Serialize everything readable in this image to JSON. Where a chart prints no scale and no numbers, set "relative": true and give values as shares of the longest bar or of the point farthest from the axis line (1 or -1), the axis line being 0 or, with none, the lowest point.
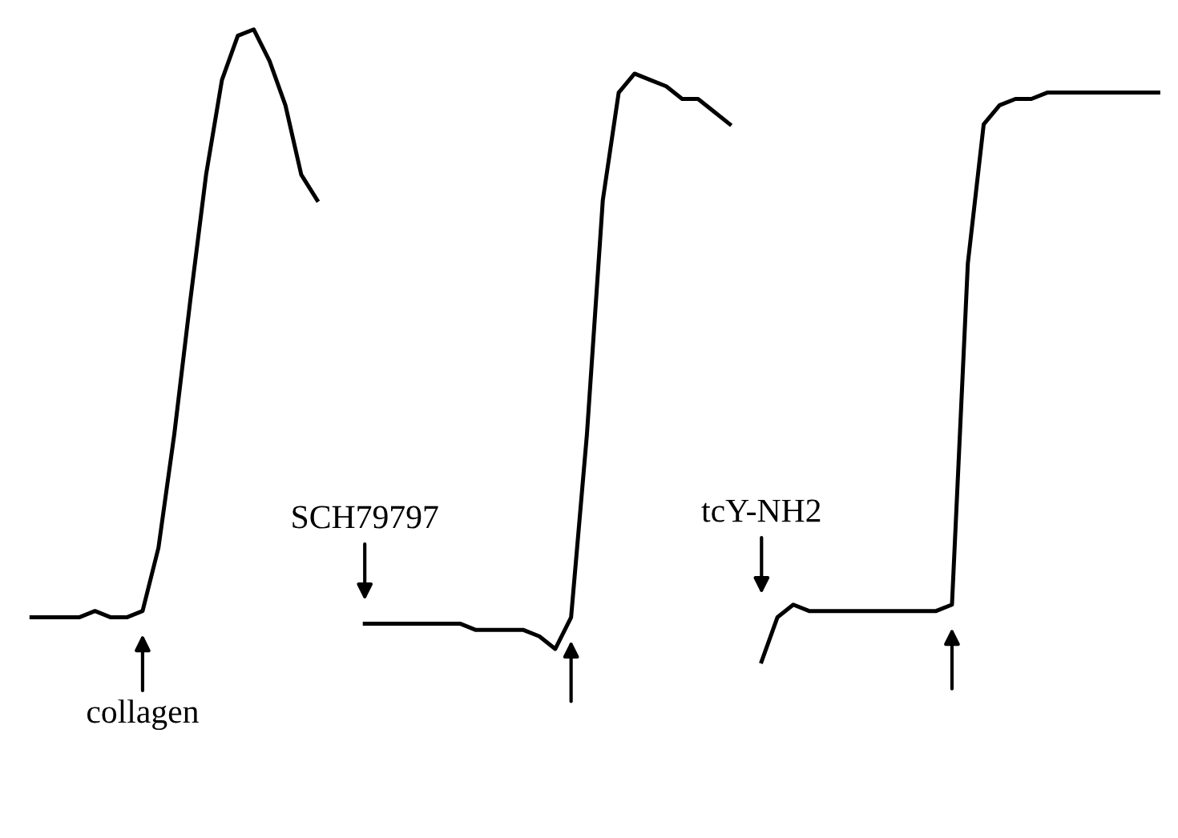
{
  "chart_data": {
    "type": "line",
    "relative": true,
    "categories": [
      null,
      null,
      null,
      null,
      null,
      null,
      null,
      null,
      null,
      null,
      null,
      null,
      null,
      null,
      null,
      null,
      null,
      null,
      null,
      null,
      null,
      null,
      null,
      null,
      null,
      null,
      null,
      null,
      null,
      null,
      null,
      null,
      null,
      null,
      null,
      null,
      null,
      null,
      null,
      null,
      null,
      null,
      null,
      null,
      null,
      null,
      null,
      null,
      null,
      null,
      null,
      null,
      null,
      null,
      null,
      null,
      null,
      null,
      null,
      null,
      null,
      null,
      null,
      null,
      null,
      null,
      null,
      null,
      null,
      null,
      null,
      null
    ],
    "series": [
      {
        "color": "#000000",
        "values": [
          0.07,
          0.07,
          0.07,
          0.07,
          0.08,
          0.07,
          0.07,
          0.08,
          0.18,
          0.36,
          0.57,
          0.77,
          0.92,
          0.99,
          1,
          0.95,
          0.88,
          0.77,
          0.73,
          null,
          null,
          null,
          null,
          null,
          null,
          null,
          null,
          null,
          null,
          null,
          null,
          null,
          null,
          null,
          null,
          null,
          null,
          null,
          null,
          null,
          null,
          null,
          null,
          null,
          null,
          null,
          null,
          null,
          null,
          null,
          null,
          null,
          null,
          null,
          null,
          null,
          null,
          null,
          null,
          null,
          null,
          null,
          null,
          null,
          null,
          null,
          null,
          null,
          null,
          null,
          null,
          null
        ]
      },
      {
        "color": "#000000",
        "values": [
          null,
          null,
          null,
          null,
          null,
          null,
          null,
          null,
          null,
          null,
          null,
          null,
          null,
          null,
          null,
          null,
          null,
          null,
          null,
          null,
          null,
          0.06,
          0.06,
          0.06,
          0.06,
          0.06,
          0.06,
          0.06,
          0.05,
          0.05,
          0.05,
          0.05,
          0.04,
          0.02,
          0.07,
          0.36,
          0.73,
          0.9,
          0.93,
          0.92,
          0.91,
          0.89,
          0.89,
          0.87,
          0.85,
          null,
          null,
          null,
          null,
          null,
          null,
          null,
          null,
          null,
          null,
          null,
          null,
          null,
          null,
          null,
          null,
          null,
          null,
          null,
          null,
          null,
          null,
          null,
          null,
          null,
          null,
          null
        ]
      },
      {
        "color": "#000000",
        "values": [
          null,
          null,
          null,
          null,
          null,
          null,
          null,
          null,
          null,
          null,
          null,
          null,
          null,
          null,
          null,
          null,
          null,
          null,
          null,
          null,
          null,
          null,
          null,
          null,
          null,
          null,
          null,
          null,
          null,
          null,
          null,
          null,
          null,
          null,
          null,
          null,
          null,
          null,
          null,
          null,
          null,
          null,
          null,
          null,
          null,
          null,
          0,
          0.07,
          0.09,
          0.08,
          0.08,
          0.08,
          0.08,
          0.08,
          0.08,
          0.08,
          0.08,
          0.08,
          0.09,
          0.63,
          0.85,
          0.88,
          0.89,
          0.89,
          0.9,
          0.9,
          0.9,
          0.9,
          0.9,
          0.9,
          0.9,
          0.9
        ]
      }
    ],
    "annotations": [
      "collagen",
      "SCH79797",
      "tcY-NH2"
    ],
    "line_style": "solid"
  }
}
